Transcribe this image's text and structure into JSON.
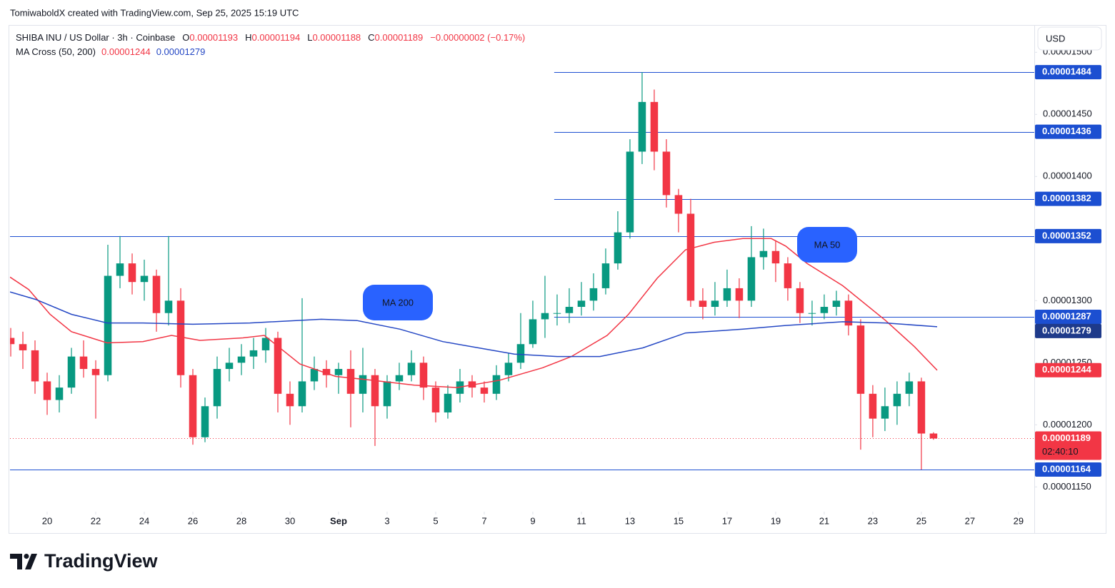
{
  "chart_data": {
    "type": "candlestick",
    "attribution": "TomiwaboldX created with TradingView.com, Sep 25, 2025 15:19 UTC",
    "title": "SHIBA INU / US Dollar · 3h · Coinbase",
    "ohlc_legend": [
      {
        "label": "O",
        "value": "0.00001193"
      },
      {
        "label": "H",
        "value": "0.00001194"
      },
      {
        "label": "L",
        "value": "0.00001188"
      },
      {
        "label": "C",
        "value": "0.00001189"
      }
    ],
    "change": "−0.00000002 (−0.17%)",
    "indicator": {
      "name": "MA Cross (50, 200)",
      "values": [
        "0.00001244",
        "0.00001279"
      ]
    },
    "currency": "USD",
    "brand": "TradingView",
    "up_color": "#089981",
    "down_color": "#f23645",
    "xlim": [
      18.47,
      60.65
    ],
    "ylim": [
      1.114e-05,
      1.522e-05
    ],
    "xticks": [
      20,
      22,
      24,
      26,
      28,
      30,
      {
        "value": 32,
        "label": "Sep"
      },
      {
        "value": 34,
        "label": "3"
      },
      {
        "value": 36,
        "label": "5"
      },
      {
        "value": 38,
        "label": "7"
      },
      {
        "value": 40,
        "label": "9"
      },
      {
        "value": 42,
        "label": "11"
      },
      {
        "value": 44,
        "label": "13"
      },
      {
        "value": 46,
        "label": "15"
      },
      {
        "value": 48,
        "label": "17"
      },
      {
        "value": 50,
        "label": "19"
      },
      {
        "value": 52,
        "label": "21"
      },
      {
        "value": 54,
        "label": "23"
      },
      {
        "value": 56,
        "label": "25"
      },
      {
        "value": 58,
        "label": "27"
      },
      {
        "value": 60,
        "label": "29"
      }
    ],
    "yticks": [
      {
        "value": 1.15e-05,
        "label": "0.00001150"
      },
      {
        "value": 1.2e-05,
        "label": "0.00001200"
      },
      {
        "value": 1.25e-05,
        "label": "0.00001250"
      },
      {
        "value": 1.3e-05,
        "label": "0.00001300"
      },
      {
        "value": 1.4e-05,
        "label": "0.00001400"
      },
      {
        "value": 1.45e-05,
        "label": "0.00001450"
      },
      {
        "value": 1.5e-05,
        "label": "0.00001500"
      }
    ],
    "x": [
      18.5,
      19,
      19.5,
      20,
      20.5,
      21,
      21.5,
      22,
      22.5,
      23,
      23.5,
      24,
      24.5,
      25,
      25.5,
      26,
      26.5,
      27,
      27.5,
      28,
      28.5,
      29,
      29.5,
      30,
      30.5,
      31,
      31.5,
      32,
      32.5,
      33,
      33.5,
      34,
      34.5,
      35,
      35.5,
      36,
      36.5,
      37,
      37.5,
      38,
      38.5,
      39,
      39.5,
      40,
      40.5,
      41,
      41.5,
      42,
      42.5,
      43,
      43.5,
      44,
      44.5,
      45,
      45.5,
      46,
      46.5,
      47,
      47.5,
      48,
      48.5,
      49,
      49.5,
      50,
      50.5,
      51,
      51.5,
      52,
      52.5,
      53,
      53.5,
      54,
      54.5,
      55,
      55.5,
      56,
      56.5
    ],
    "open": [
      1.27e-05,
      1.265e-05,
      1.26e-05,
      1.235e-05,
      1.22e-05,
      1.23e-05,
      1.255e-05,
      1.245e-05,
      1.24e-05,
      1.32e-05,
      1.33e-05,
      1.315e-05,
      1.32e-05,
      1.29e-05,
      1.3e-05,
      1.24e-05,
      1.19e-05,
      1.215e-05,
      1.245e-05,
      1.25e-05,
      1.255e-05,
      1.26e-05,
      1.27e-05,
      1.225e-05,
      1.215e-05,
      1.235e-05,
      1.245e-05,
      1.24e-05,
      1.245e-05,
      1.225e-05,
      1.24e-05,
      1.215e-05,
      1.235e-05,
      1.24e-05,
      1.25e-05,
      1.23e-05,
      1.21e-05,
      1.225e-05,
      1.235e-05,
      1.23e-05,
      1.225e-05,
      1.24e-05,
      1.25e-05,
      1.265e-05,
      1.285e-05,
      1.29e-05,
      1.29e-05,
      1.295e-05,
      1.3e-05,
      1.31e-05,
      1.33e-05,
      1.355e-05,
      1.42e-05,
      1.46e-05,
      1.42e-05,
      1.385e-05,
      1.37e-05,
      1.3e-05,
      1.295e-05,
      1.3e-05,
      1.31e-05,
      1.3e-05,
      1.335e-05,
      1.34e-05,
      1.33e-05,
      1.31e-05,
      1.29e-05,
      1.29e-05,
      1.295e-05,
      1.3e-05,
      1.28e-05,
      1.225e-05,
      1.205e-05,
      1.215e-05,
      1.225e-05,
      1.235e-05,
      1.193e-05
    ],
    "high": [
      1.278e-05,
      1.275e-05,
      1.268e-05,
      1.242e-05,
      1.24e-05,
      1.262e-05,
      1.268e-05,
      1.252e-05,
      1.345e-05,
      1.352e-05,
      1.338e-05,
      1.333e-05,
      1.325e-05,
      1.352e-05,
      1.31e-05,
      1.245e-05,
      1.222e-05,
      1.255e-05,
      1.262e-05,
      1.265e-05,
      1.27e-05,
      1.278e-05,
      1.275e-05,
      1.235e-05,
      1.302e-05,
      1.255e-05,
      1.252e-05,
      1.25e-05,
      1.26e-05,
      1.262e-05,
      1.245e-05,
      1.24e-05,
      1.25e-05,
      1.26e-05,
      1.255e-05,
      1.235e-05,
      1.232e-05,
      1.245e-05,
      1.24e-05,
      1.235e-05,
      1.248e-05,
      1.258e-05,
      1.29e-05,
      1.3e-05,
      1.32e-05,
      1.305e-05,
      1.31e-05,
      1.315e-05,
      1.322e-05,
      1.342e-05,
      1.372e-05,
      1.43e-05,
      1.484e-05,
      1.47e-05,
      1.43e-05,
      1.39e-05,
      1.382e-05,
      1.31e-05,
      1.315e-05,
      1.325e-05,
      1.318e-05,
      1.36e-05,
      1.358e-05,
      1.348e-05,
      1.335e-05,
      1.315e-05,
      1.3e-05,
      1.305e-05,
      1.308e-05,
      1.305e-05,
      1.285e-05,
      1.232e-05,
      1.23e-05,
      1.235e-05,
      1.242e-05,
      1.238e-05,
      1.194e-05
    ],
    "low": [
      1.255e-05,
      1.245e-05,
      1.225e-05,
      1.208e-05,
      1.21e-05,
      1.225e-05,
      1.238e-05,
      1.205e-05,
      1.235e-05,
      1.31e-05,
      1.305e-05,
      1.3e-05,
      1.275e-05,
      1.28e-05,
      1.23e-05,
      1.184e-05,
      1.186e-05,
      1.205e-05,
      1.235e-05,
      1.24e-05,
      1.245e-05,
      1.25e-05,
      1.21e-05,
      1.2e-05,
      1.21e-05,
      1.228e-05,
      1.23e-05,
      1.225e-05,
      1.198e-05,
      1.21e-05,
      1.183e-05,
      1.205e-05,
      1.228e-05,
      1.235e-05,
      1.22e-05,
      1.202e-05,
      1.205e-05,
      1.218e-05,
      1.222e-05,
      1.218e-05,
      1.22e-05,
      1.235e-05,
      1.245e-05,
      1.262e-05,
      1.27e-05,
      1.28e-05,
      1.282e-05,
      1.288e-05,
      1.292e-05,
      1.305e-05,
      1.325e-05,
      1.35e-05,
      1.41e-05,
      1.405e-05,
      1.375e-05,
      1.355e-05,
      1.295e-05,
      1.285e-05,
      1.288e-05,
      1.295e-05,
      1.286e-05,
      1.295e-05,
      1.325e-05,
      1.315e-05,
      1.3e-05,
      1.282e-05,
      1.28e-05,
      1.285e-05,
      1.288e-05,
      1.272e-05,
      1.18e-05,
      1.19e-05,
      1.195e-05,
      1.2e-05,
      1.215e-05,
      1.164e-05,
      1.188e-05
    ],
    "close": [
      1.265e-05,
      1.26e-05,
      1.235e-05,
      1.22e-05,
      1.23e-05,
      1.255e-05,
      1.245e-05,
      1.24e-05,
      1.32e-05,
      1.33e-05,
      1.315e-05,
      1.32e-05,
      1.29e-05,
      1.3e-05,
      1.24e-05,
      1.19e-05,
      1.215e-05,
      1.245e-05,
      1.25e-05,
      1.255e-05,
      1.26e-05,
      1.27e-05,
      1.225e-05,
      1.215e-05,
      1.235e-05,
      1.245e-05,
      1.24e-05,
      1.245e-05,
      1.225e-05,
      1.24e-05,
      1.215e-05,
      1.235e-05,
      1.24e-05,
      1.25e-05,
      1.23e-05,
      1.21e-05,
      1.225e-05,
      1.235e-05,
      1.23e-05,
      1.225e-05,
      1.24e-05,
      1.25e-05,
      1.265e-05,
      1.285e-05,
      1.29e-05,
      1.29e-05,
      1.295e-05,
      1.3e-05,
      1.31e-05,
      1.33e-05,
      1.355e-05,
      1.42e-05,
      1.46e-05,
      1.42e-05,
      1.385e-05,
      1.37e-05,
      1.3e-05,
      1.295e-05,
      1.3e-05,
      1.31e-05,
      1.3e-05,
      1.335e-05,
      1.34e-05,
      1.33e-05,
      1.31e-05,
      1.29e-05,
      1.29e-05,
      1.295e-05,
      1.3e-05,
      1.28e-05,
      1.225e-05,
      1.205e-05,
      1.215e-05,
      1.225e-05,
      1.235e-05,
      1.193e-05,
      1.189e-05
    ],
    "series": [
      {
        "name": "MA 50",
        "color": "#f23645",
        "tag": "0.00001244",
        "x": [
          18.47,
          19.24,
          20.12,
          21.0,
          22.47,
          23.94,
          25.12,
          26.29,
          28.06,
          28.94,
          30.41,
          31.88,
          33.35,
          35.12,
          36.88,
          38.65,
          40.41,
          41.59,
          43.06,
          43.94,
          45.12,
          46.29,
          47.47,
          48.65,
          49.82,
          50.41,
          51.29,
          52.76,
          54.53,
          55.71,
          56.65
        ],
        "values": [
          1.319e-05,
          1.309e-05,
          1.289e-05,
          1.275e-05,
          1.266e-05,
          1.267e-05,
          1.272e-05,
          1.268e-05,
          1.27e-05,
          1.272e-05,
          1.249e-05,
          1.239e-05,
          1.236e-05,
          1.232e-05,
          1.23e-05,
          1.236e-05,
          1.246e-05,
          1.255e-05,
          1.272e-05,
          1.289e-05,
          1.318e-05,
          1.341e-05,
          1.347e-05,
          1.35e-05,
          1.35e-05,
          1.344e-05,
          1.33e-05,
          1.312e-05,
          1.284e-05,
          1.263e-05,
          1.244e-05
        ]
      },
      {
        "name": "MA 200",
        "color": "#2447c4",
        "tag": "0.00001279",
        "x": [
          18.47,
          19.53,
          21.0,
          22.47,
          23.94,
          26.0,
          28.35,
          31.29,
          32.76,
          34.53,
          36.29,
          38.06,
          39.24,
          41.0,
          42.76,
          44.53,
          46.29,
          48.65,
          50.41,
          52.76,
          54.53,
          56.65
        ],
        "values": [
          1.307e-05,
          1.301e-05,
          1.289e-05,
          1.282e-05,
          1.282e-05,
          1.281e-05,
          1.282e-05,
          1.285e-05,
          1.284e-05,
          1.277e-05,
          1.267e-05,
          1.261e-05,
          1.257e-05,
          1.255e-05,
          1.255e-05,
          1.262e-05,
          1.274e-05,
          1.277e-05,
          1.28e-05,
          1.283e-05,
          1.282e-05,
          1.279e-05
        ]
      }
    ],
    "levels": [
      {
        "value": 1.484e-05,
        "label": "0.00001484",
        "x_start": 40.88
      },
      {
        "value": 1.436e-05,
        "label": "0.00001436",
        "x_start": 40.88
      },
      {
        "value": 1.382e-05,
        "label": "0.00001382",
        "x_start": 40.88
      },
      {
        "value": 1.352e-05,
        "label": "0.00001352",
        "x_start": 18.47
      },
      {
        "value": 1.287e-05,
        "label": "0.00001287",
        "x_start": 40.88
      },
      {
        "value": 1.164e-05,
        "label": "0.00001164",
        "x_start": 18.47
      }
    ],
    "last_price": {
      "value": 1.189e-05,
      "label": "0.00001189",
      "countdown": "02:40:10"
    }
  }
}
